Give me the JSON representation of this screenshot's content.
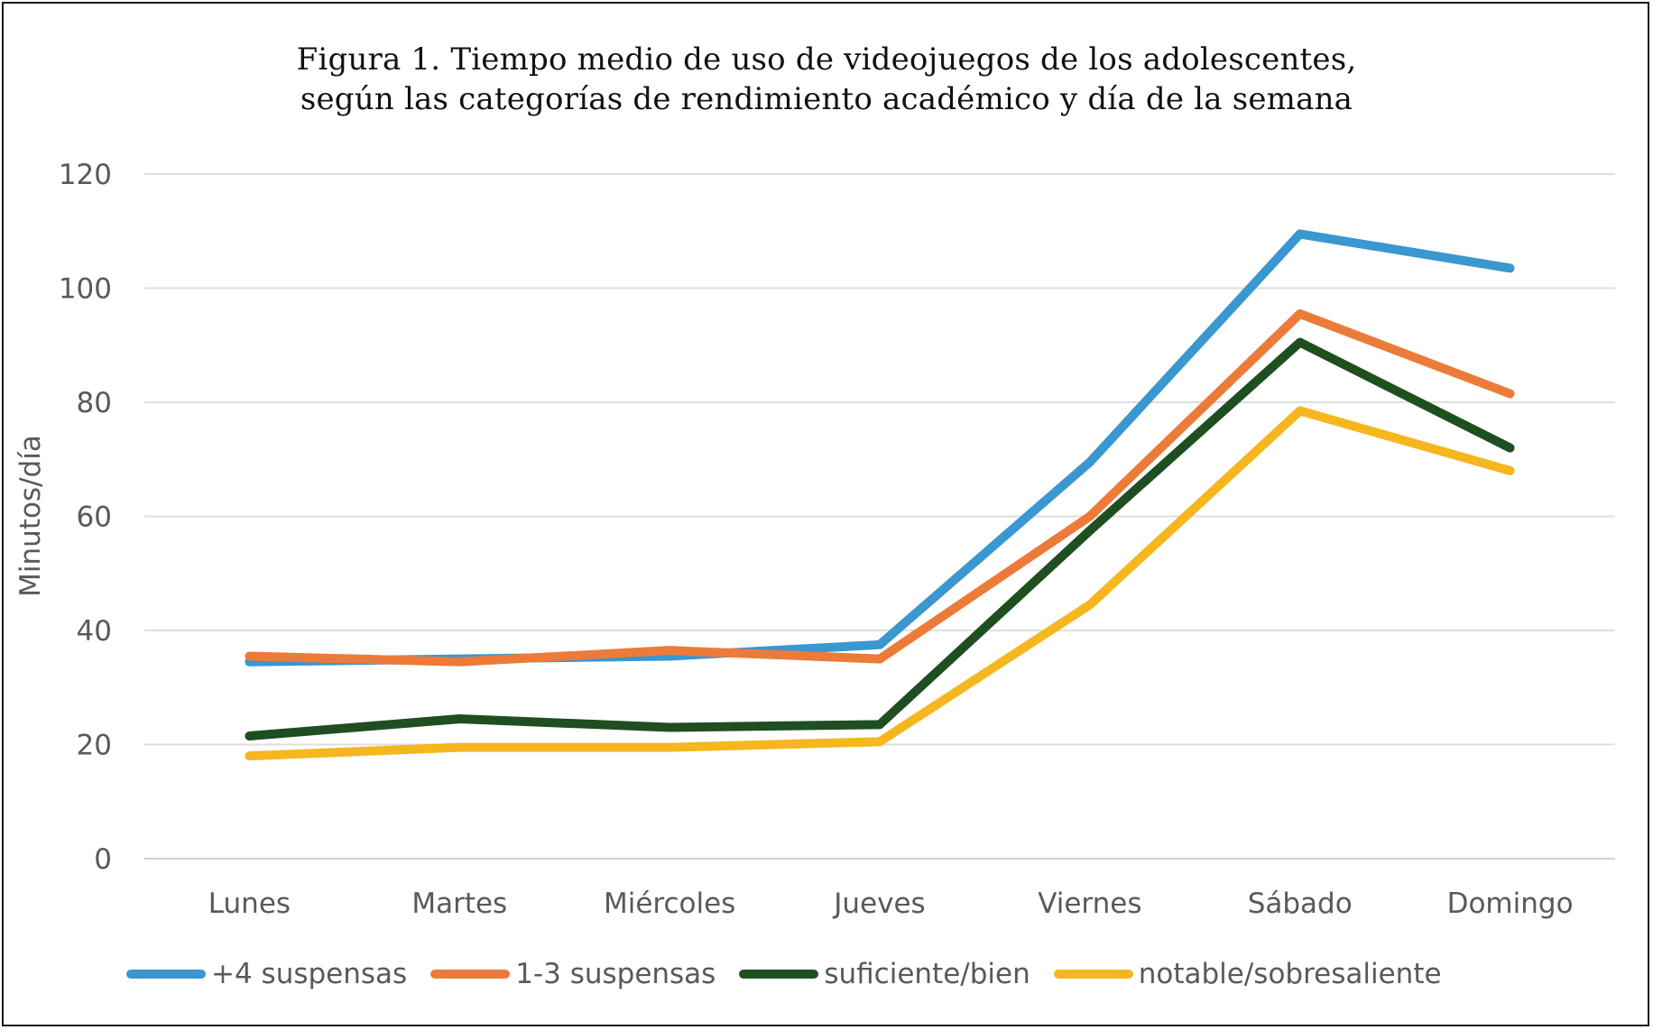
{
  "chart_data": {
    "type": "line",
    "title": "Figura 1. Tiempo medio de uso de videojuegos de los adolescentes,",
    "subtitle": "según las categorías de rendimiento académico y día de la semana",
    "xlabel": "",
    "ylabel": "Minutos/día",
    "ylim": [
      0,
      120
    ],
    "yticks": [
      "0",
      "20",
      "40",
      "60",
      "80",
      "100",
      "120"
    ],
    "categories": [
      "Lunes",
      "Martes",
      "Miércoles",
      "Jueves",
      "Viernes",
      "Sábado",
      "Domingo"
    ],
    "grid": true,
    "legend_position": "bottom",
    "series": [
      {
        "name": "+4 suspensas",
        "color": "#3a97cf",
        "values": [
          34.5,
          35,
          35.5,
          37.5,
          69.5,
          109.5,
          103.5
        ]
      },
      {
        "name": "1-3 suspensas",
        "color": "#ec7b3a",
        "values": [
          35.5,
          34.5,
          36.5,
          35,
          60,
          95.5,
          81.5
        ]
      },
      {
        "name": "suficiente/bien",
        "color": "#1f4e20",
        "values": [
          21.5,
          24.5,
          23,
          23.5,
          57.5,
          90.5,
          72
        ]
      },
      {
        "name": "notable/sobresaliente",
        "color": "#f5b61e",
        "values": [
          18,
          19.5,
          19.5,
          20.5,
          44.5,
          78.5,
          68
        ]
      }
    ]
  }
}
